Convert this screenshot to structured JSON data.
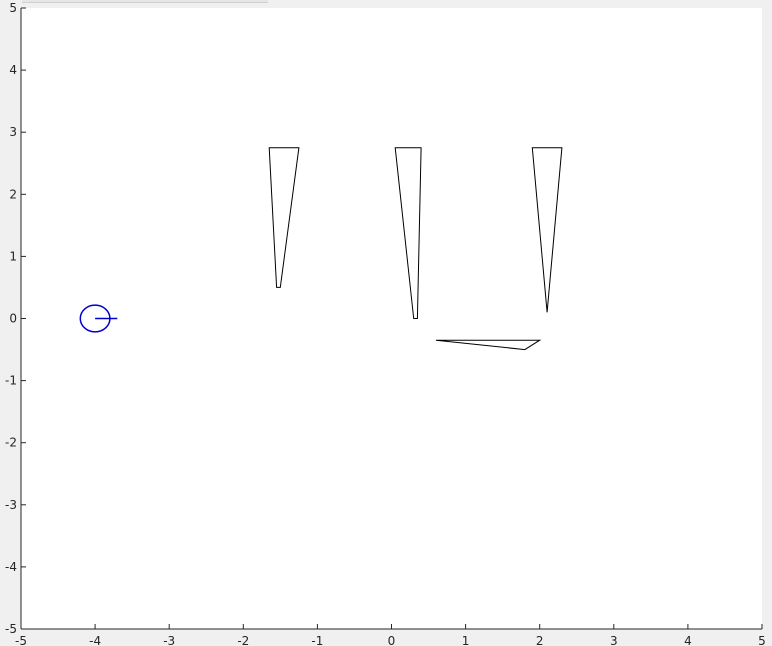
{
  "chart_data": {
    "type": "line",
    "title": "",
    "xlabel": "",
    "ylabel": "",
    "xlim": [
      -5,
      5
    ],
    "ylim": [
      -5,
      5
    ],
    "grid": false,
    "xticks": [
      -5,
      -4,
      -3,
      -2,
      -1,
      0,
      1,
      2,
      3,
      4,
      5
    ],
    "yticks": [
      -5,
      -4,
      -3,
      -2,
      -1,
      0,
      1,
      2,
      3,
      4,
      5
    ],
    "xtick_labels": [
      "-5",
      "-4",
      "-3",
      "-2",
      "-1",
      "0",
      "1",
      "2",
      "3",
      "4",
      "5"
    ],
    "ytick_labels": [
      "-5",
      "-4",
      "-3",
      "-2",
      "-1",
      "0",
      "1",
      "2",
      "3",
      "4",
      "5"
    ],
    "obstacles": [
      {
        "points": [
          [
            -1.65,
            2.75
          ],
          [
            -1.25,
            2.75
          ],
          [
            -1.5,
            0.5
          ],
          [
            -1.55,
            0.5
          ]
        ]
      },
      {
        "points": [
          [
            0.05,
            2.75
          ],
          [
            0.4,
            2.75
          ],
          [
            0.35,
            0.0
          ],
          [
            0.3,
            0.0
          ]
        ]
      },
      {
        "points": [
          [
            1.9,
            2.75
          ],
          [
            2.3,
            2.75
          ],
          [
            2.1,
            0.1
          ]
        ]
      },
      {
        "points": [
          [
            0.6,
            -0.35
          ],
          [
            2.0,
            -0.35
          ],
          [
            1.8,
            -0.5
          ]
        ]
      }
    ],
    "robot": {
      "center": [
        -4.0,
        0.0
      ],
      "radius": 0.2,
      "heading_end": [
        -3.7,
        0.0
      ],
      "color": "#0000cc"
    },
    "obstacle_color": "#000000",
    "axes_background": "#ffffff",
    "figure_background": "#f0f0f0"
  }
}
